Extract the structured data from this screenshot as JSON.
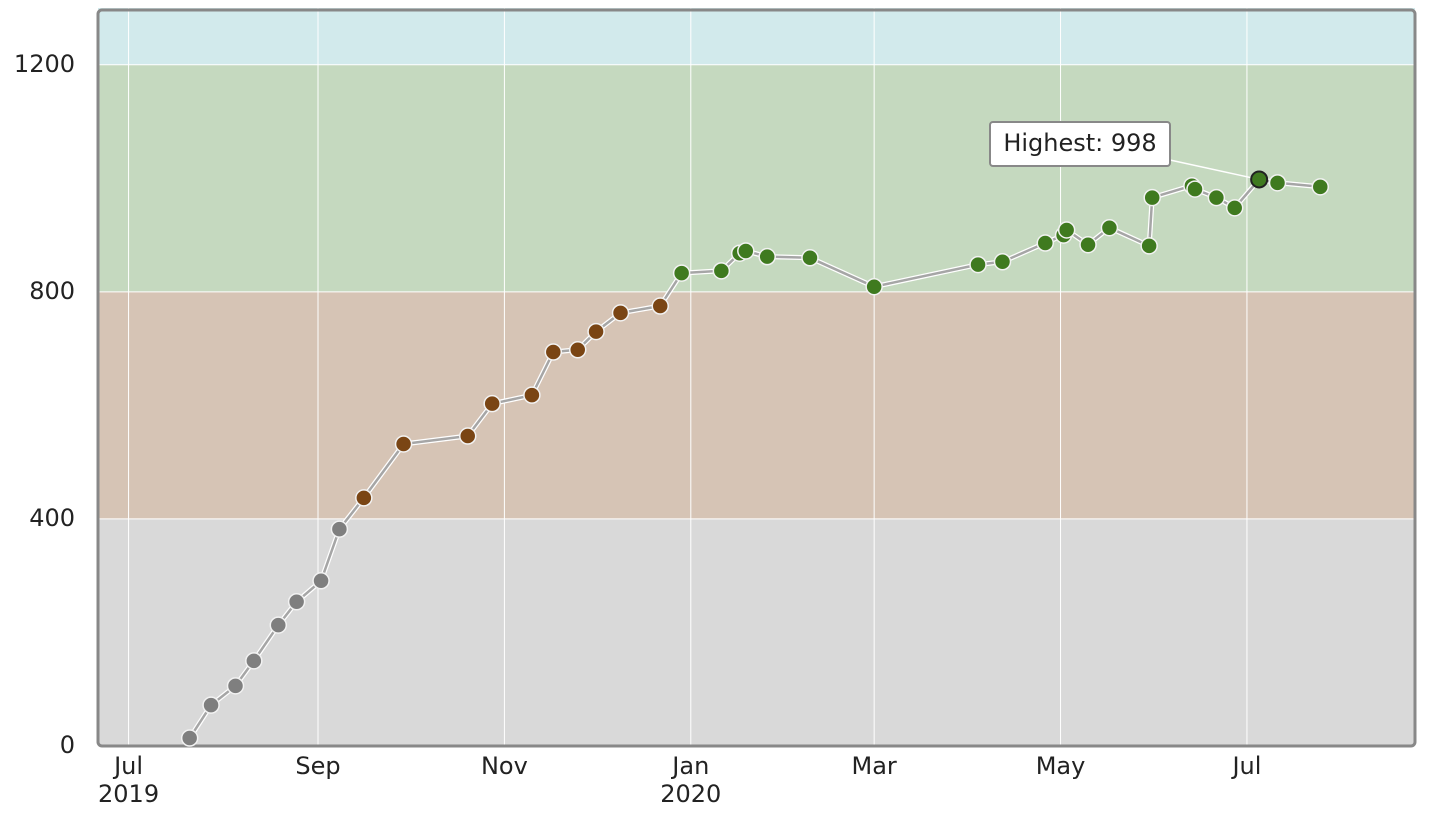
{
  "chart_data": {
    "type": "line",
    "x": [
      "2019-07-21",
      "2019-07-28",
      "2019-08-05",
      "2019-08-11",
      "2019-08-19",
      "2019-08-25",
      "2019-09-02",
      "2019-09-08",
      "2019-09-16",
      "2019-09-29",
      "2019-10-20",
      "2019-10-28",
      "2019-11-10",
      "2019-11-17",
      "2019-11-25",
      "2019-12-01",
      "2019-12-09",
      "2019-12-22",
      "2019-12-29",
      "2020-01-11",
      "2020-01-17",
      "2020-01-19",
      "2020-01-26",
      "2020-02-09",
      "2020-03-01",
      "2020-04-04",
      "2020-04-12",
      "2020-04-26",
      "2020-05-02",
      "2020-05-03",
      "2020-05-10",
      "2020-05-17",
      "2020-05-30",
      "2020-05-31",
      "2020-06-13",
      "2020-06-14",
      "2020-06-21",
      "2020-06-27",
      "2020-07-05",
      "2020-07-11",
      "2020-07-25"
    ],
    "values": [
      14,
      72,
      106,
      150,
      213,
      254,
      291,
      382,
      437,
      532,
      546,
      603,
      618,
      694,
      698,
      730,
      763,
      775,
      833,
      837,
      868,
      872,
      862,
      860,
      809,
      848,
      853,
      886,
      900,
      909,
      883,
      913,
      881,
      966,
      987,
      981,
      966,
      948,
      998,
      992,
      985
    ],
    "line_color": "#a6a6a6",
    "xlim": [
      "2019-06-21",
      "2020-08-25"
    ],
    "xticks": [
      {
        "value": "2019-07-01",
        "label": "Jul",
        "year": "2019"
      },
      {
        "value": "2019-09-01",
        "label": "Sep"
      },
      {
        "value": "2019-11-01",
        "label": "Nov"
      },
      {
        "value": "2020-01-01",
        "label": "Jan",
        "year": "2020"
      },
      {
        "value": "2020-03-01",
        "label": "Mar"
      },
      {
        "value": "2020-05-01",
        "label": "May"
      },
      {
        "value": "2020-07-01",
        "label": "Jul"
      }
    ],
    "ylim": [
      0,
      1300
    ],
    "yticks": [
      0,
      400,
      800,
      1200
    ],
    "grid": true,
    "bands": [
      {
        "from": 0,
        "to": 400,
        "color": "#d9d9d9",
        "marker_color": "#7f7f7f"
      },
      {
        "from": 400,
        "to": 800,
        "color": "#d6c4b5",
        "marker_color": "#7a4514"
      },
      {
        "from": 800,
        "to": 1200,
        "color": "#c5d9bf",
        "marker_color": "#3f7a1f"
      },
      {
        "from": 1200,
        "to": 1300,
        "color": "#d2eaec",
        "marker_color": "#3f7a1f"
      }
    ],
    "annotation": {
      "label": "Highest: 998",
      "point": 38
    }
  }
}
